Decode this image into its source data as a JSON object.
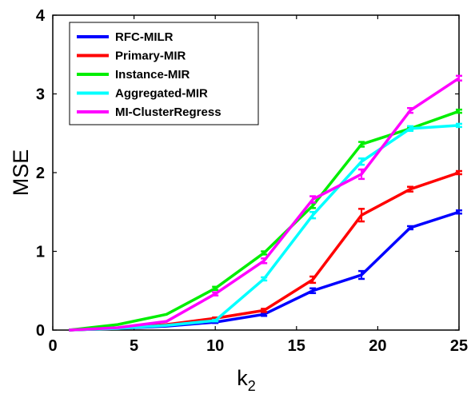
{
  "chart_data": {
    "type": "line",
    "xlabel": "k",
    "xlabel_sub": "2",
    "ylabel": "MSE",
    "xlim": [
      0,
      25
    ],
    "ylim": [
      0,
      4
    ],
    "xticks": [
      "0",
      "5",
      "10",
      "15",
      "20",
      "25"
    ],
    "yticks": [
      "0",
      "1",
      "2",
      "3",
      "4"
    ],
    "grid": false,
    "legend_position": "top-left",
    "series": [
      {
        "name": "RFC-MILR",
        "color": "#0000ff",
        "x": [
          1,
          4,
          7,
          10,
          13,
          16,
          19,
          22,
          25
        ],
        "y": [
          0.0,
          0.02,
          0.05,
          0.1,
          0.2,
          0.5,
          0.7,
          1.3,
          1.5
        ],
        "err": [
          0,
          0,
          0,
          0.01,
          0.02,
          0.03,
          0.05,
          0.02,
          0.02
        ]
      },
      {
        "name": "Primary-MIR",
        "color": "#ff0000",
        "x": [
          1,
          4,
          7,
          10,
          13,
          16,
          19,
          22,
          25
        ],
        "y": [
          0.0,
          0.02,
          0.07,
          0.15,
          0.25,
          0.64,
          1.46,
          1.79,
          2.0
        ],
        "err": [
          0,
          0,
          0,
          0.01,
          0.02,
          0.04,
          0.08,
          0.03,
          0.02
        ]
      },
      {
        "name": "Instance-MIR",
        "color": "#00ee00",
        "x": [
          1,
          4,
          7,
          10,
          13,
          16,
          19,
          22,
          25
        ],
        "y": [
          0.0,
          0.07,
          0.2,
          0.53,
          0.98,
          1.58,
          2.36,
          2.56,
          2.78
        ],
        "err": [
          0,
          0,
          0,
          0.02,
          0.02,
          0.03,
          0.03,
          0.02,
          0.02
        ]
      },
      {
        "name": "Aggregated-MIR",
        "color": "#00ffff",
        "x": [
          1,
          4,
          7,
          10,
          13,
          16,
          19,
          22,
          25
        ],
        "y": [
          0.0,
          0.02,
          0.06,
          0.12,
          0.65,
          1.46,
          2.14,
          2.56,
          2.6
        ],
        "err": [
          0,
          0,
          0,
          0.01,
          0.02,
          0.04,
          0.04,
          0.03,
          0.02
        ]
      },
      {
        "name": "MI-ClusterRegress",
        "color": "#ff00ff",
        "x": [
          1,
          4,
          7,
          10,
          13,
          16,
          19,
          22,
          25
        ],
        "y": [
          0.0,
          0.03,
          0.11,
          0.46,
          0.88,
          1.66,
          1.98,
          2.79,
          3.2
        ],
        "err": [
          0,
          0,
          0,
          0.02,
          0.03,
          0.04,
          0.06,
          0.03,
          0.03
        ]
      }
    ]
  }
}
